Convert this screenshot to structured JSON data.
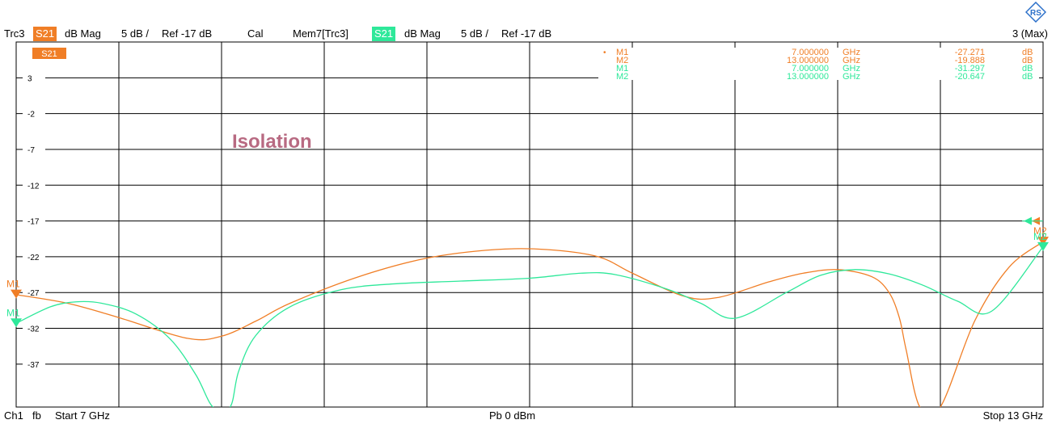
{
  "header": {
    "trace1_name": "Trc3",
    "trace1_param": "S21",
    "trace1_format": "dB Mag",
    "trace1_scale": "5 dB /",
    "trace1_ref": "Ref -17 dB",
    "cal": "Cal",
    "trace2_name": "Mem7[Trc3]",
    "trace2_param": "S21",
    "trace2_format": "dB Mag",
    "trace2_scale": "5 dB /",
    "trace2_ref": "Ref -17 dB",
    "max_label": "3 (Max)"
  },
  "footer": {
    "channel": "Ch1",
    "fb": "fb",
    "start": "Start  7 GHz",
    "power": "Pb    0 dBm",
    "stop": "Stop  13 GHz"
  },
  "annotation": "Isolation",
  "trace_tag": "S21",
  "colors": {
    "trc3": "#f07e26",
    "mem7": "#2ee89a",
    "grid": "#000000",
    "annotation": "#b86a82"
  },
  "markers_table": [
    {
      "name": "M1",
      "freq": "7.000000",
      "unit": "GHz",
      "value": "-27.271",
      "vunit": "dB",
      "trace": "trc3",
      "active": true
    },
    {
      "name": "M2",
      "freq": "13.000000",
      "unit": "GHz",
      "value": "-19.888",
      "vunit": "dB",
      "trace": "trc3",
      "active": false
    },
    {
      "name": "M1",
      "freq": "7.000000",
      "unit": "GHz",
      "value": "-31.297",
      "vunit": "dB",
      "trace": "mem7",
      "active": false
    },
    {
      "name": "M2",
      "freq": "13.000000",
      "unit": "GHz",
      "value": "-20.647",
      "vunit": "dB",
      "trace": "mem7",
      "active": false
    }
  ],
  "chart_data": {
    "type": "line",
    "xlim": [
      7,
      13
    ],
    "ylim": [
      -43,
      8
    ],
    "x_divisions": 10,
    "y_ticks": [
      3,
      -2,
      -7,
      -12,
      -17,
      -22,
      -27,
      -32,
      -37
    ],
    "y_tick_labels": [
      "3",
      "-2",
      "-7",
      "-12",
      "-17",
      "-22",
      "-27",
      "-32",
      "-37"
    ],
    "ref_level": -17,
    "series": [
      {
        "name": "Trc3",
        "color": "#f07e26",
        "x": [
          7.0,
          7.3,
          7.6,
          8.0,
          8.2,
          8.4,
          8.6,
          9.0,
          9.4,
          9.8,
          10.1,
          10.4,
          10.6,
          10.9,
          11.1,
          11.4,
          11.6,
          11.8,
          12.0,
          12.1,
          12.16,
          12.2,
          12.28,
          12.4,
          12.6,
          12.8,
          13.0
        ],
        "y": [
          -27.3,
          -28.5,
          -30.5,
          -33.4,
          -33.1,
          -31.0,
          -28.5,
          -24.8,
          -22.2,
          -21.0,
          -21.0,
          -22.0,
          -24.3,
          -27.5,
          -27.7,
          -25.5,
          -24.3,
          -23.8,
          -24.8,
          -27.0,
          -30.5,
          -35.0,
          -43.0,
          -43.0,
          -31.0,
          -23.5,
          -19.9
        ]
      },
      {
        "name": "Mem7[Trc3]",
        "color": "#2ee89a",
        "x": [
          7.0,
          7.2,
          7.35,
          7.5,
          7.7,
          7.9,
          8.05,
          8.15,
          8.25,
          8.3,
          8.4,
          8.6,
          8.9,
          9.2,
          9.6,
          10.0,
          10.3,
          10.5,
          10.8,
          11.0,
          11.2,
          11.5,
          11.7,
          11.9,
          12.1,
          12.3,
          12.5,
          12.7,
          13.0
        ],
        "y": [
          -31.3,
          -29.0,
          -28.3,
          -28.5,
          -30.0,
          -33.5,
          -38.5,
          -43.0,
          -43.0,
          -38.0,
          -33.0,
          -29.0,
          -26.6,
          -25.8,
          -25.4,
          -25.0,
          -24.3,
          -24.5,
          -26.5,
          -28.5,
          -30.6,
          -27.0,
          -24.6,
          -23.8,
          -24.4,
          -26.0,
          -28.2,
          -29.6,
          -20.6
        ]
      }
    ],
    "markers": [
      {
        "name": "M1",
        "series": "Trc3",
        "x": 7.0,
        "y": -27.271
      },
      {
        "name": "M2",
        "series": "Trc3",
        "x": 13.0,
        "y": -19.888
      },
      {
        "name": "M1",
        "series": "Mem7[Trc3]",
        "x": 7.0,
        "y": -31.297
      },
      {
        "name": "M2",
        "series": "Mem7[Trc3]",
        "x": 13.0,
        "y": -20.647
      }
    ]
  }
}
